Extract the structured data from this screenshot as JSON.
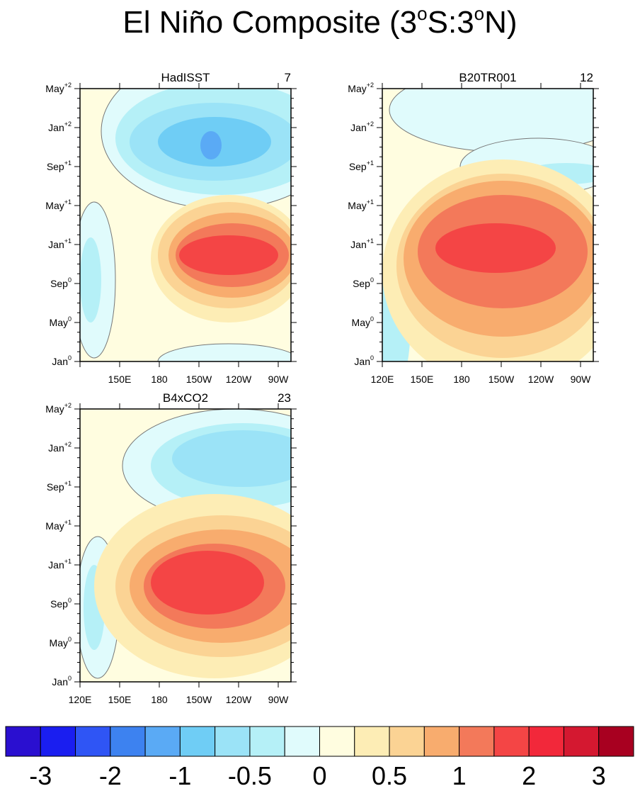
{
  "title_parts": [
    "El Niño Composite (3",
    "o",
    "S:3",
    "o",
    "N)"
  ],
  "month_axis": [
    {
      "month": "Jan",
      "sup": "0"
    },
    {
      "month": "May",
      "sup": "0"
    },
    {
      "month": "Sep",
      "sup": "0"
    },
    {
      "month": "Jan",
      "sup": "+1"
    },
    {
      "month": "May",
      "sup": "+1"
    },
    {
      "month": "Sep",
      "sup": "+1"
    },
    {
      "month": "Jan",
      "sup": "+2"
    },
    {
      "month": "May",
      "sup": "+2"
    }
  ],
  "panels": [
    {
      "name": "HadISST",
      "count": "7",
      "xticks": [
        null,
        "150E",
        "180",
        "150W",
        "120W",
        "90W"
      ]
    },
    {
      "name": "B20TR001",
      "count": "12",
      "xticks": [
        "120E",
        "150E",
        "180",
        "150W",
        "120W",
        "90W"
      ]
    },
    {
      "name": "B4xCO2",
      "count": "23",
      "xticks": [
        "120E",
        "150E",
        "180",
        "150W",
        "120W",
        "90W"
      ]
    }
  ],
  "colorbar": {
    "colors": [
      "#2a0fd0",
      "#1a1ef0",
      "#2f55f5",
      "#3d82f0",
      "#5aaaf5",
      "#6fcdf5",
      "#9be3f7",
      "#b5f0f7",
      "#e0fbfc",
      "#fffde0",
      "#fdedb5",
      "#fbd394",
      "#f8ac6e",
      "#f3795a",
      "#f44545",
      "#f2283a",
      "#d41830",
      "#a80020"
    ],
    "labels": [
      -3,
      -2,
      -1,
      -0.5,
      0,
      0.5,
      1,
      2,
      3
    ]
  }
}
